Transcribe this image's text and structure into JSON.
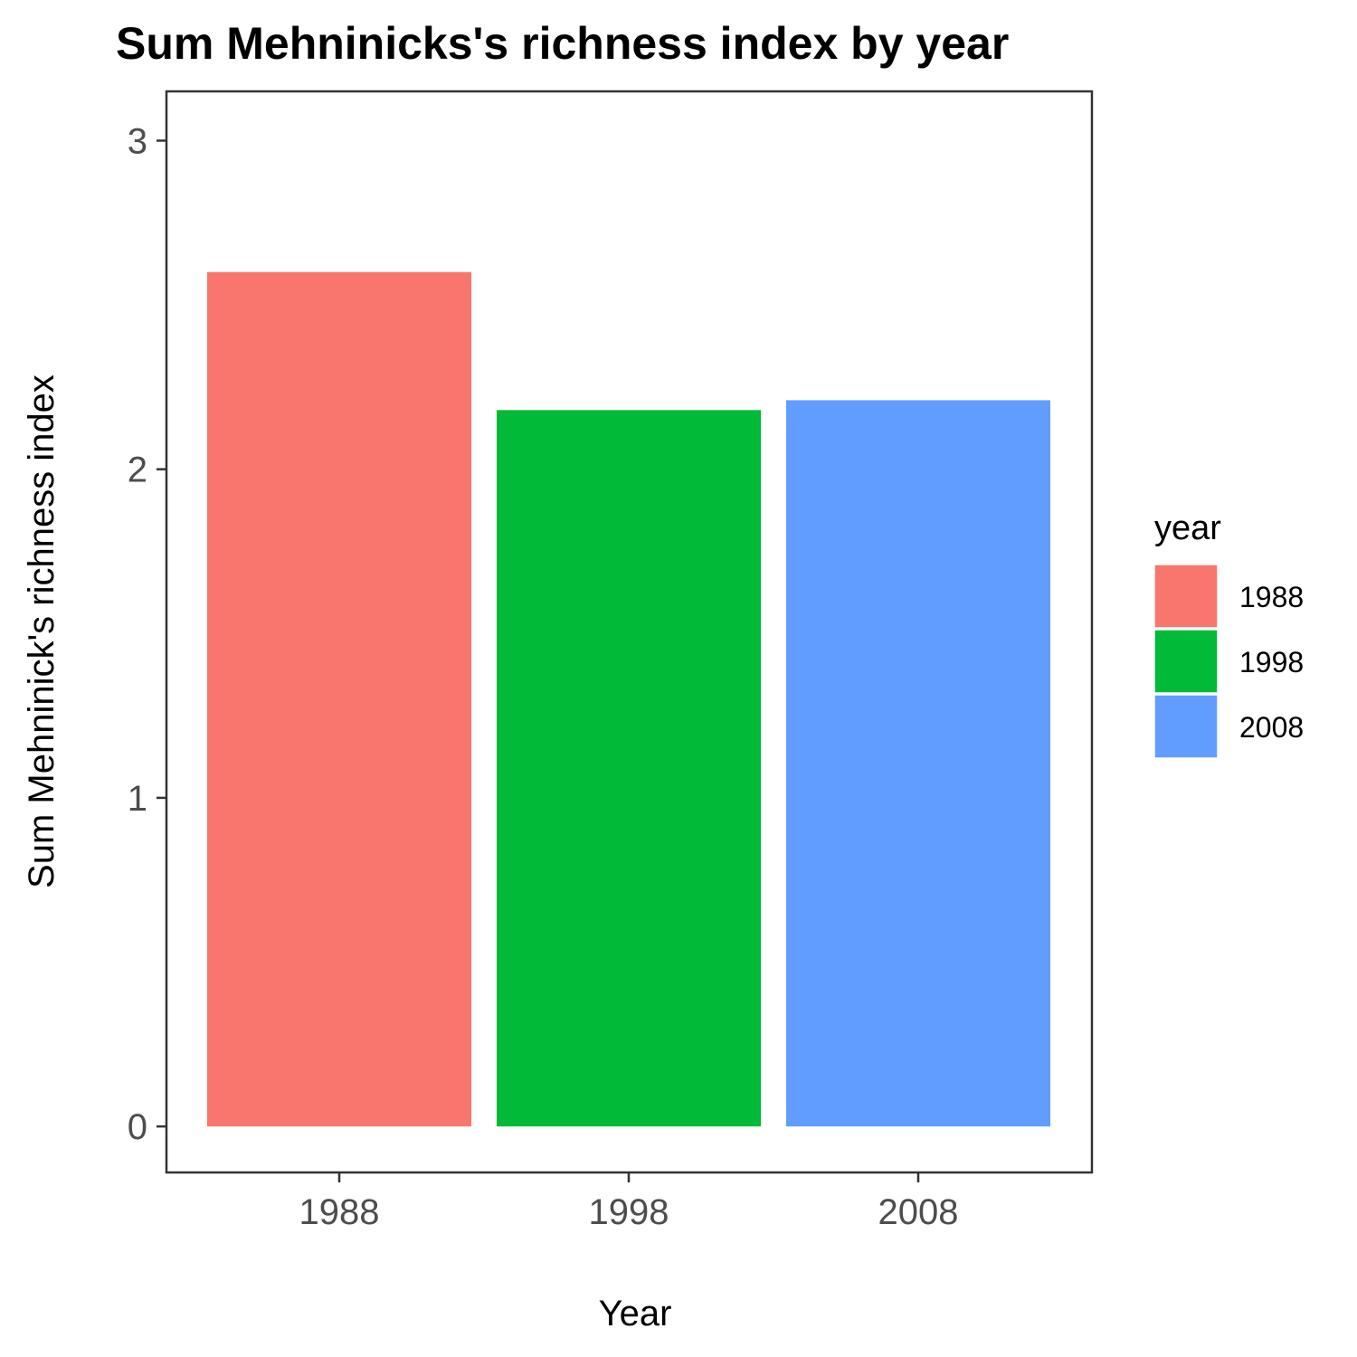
{
  "chart_data": {
    "type": "bar",
    "title": "Sum Mehninicks's richness index by year",
    "xlabel": "Year",
    "ylabel": "Sum Mehninick's richness index",
    "categories": [
      "1988",
      "1998",
      "2008"
    ],
    "values": [
      2.6,
      2.18,
      2.21
    ],
    "colors": [
      "#F8766D",
      "#00BA38",
      "#619CFF"
    ],
    "ylim": [
      -0.14,
      3.15
    ],
    "yticks": [
      "0",
      "1",
      "2",
      "3"
    ],
    "grid": false,
    "legend": {
      "title": "year",
      "position": "right",
      "entries": [
        "1988",
        "1998",
        "2008"
      ]
    }
  }
}
